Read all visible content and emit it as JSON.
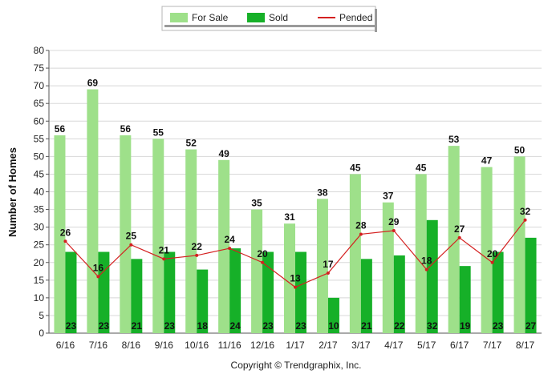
{
  "chart_data": {
    "type": "bar",
    "categories": [
      "6/16",
      "7/16",
      "8/16",
      "9/16",
      "10/16",
      "11/16",
      "12/16",
      "1/17",
      "2/17",
      "3/17",
      "4/17",
      "5/17",
      "6/17",
      "7/17",
      "8/17"
    ],
    "series": [
      {
        "name": "For Sale",
        "type": "bar",
        "color": "#9ee08a",
        "values": [
          56,
          69,
          56,
          55,
          52,
          49,
          35,
          31,
          38,
          45,
          37,
          45,
          53,
          47,
          50
        ]
      },
      {
        "name": "Sold",
        "type": "bar",
        "color": "#16b028",
        "values": [
          23,
          23,
          21,
          23,
          18,
          24,
          23,
          23,
          10,
          21,
          22,
          32,
          19,
          23,
          27
        ]
      },
      {
        "name": "Pended",
        "type": "line",
        "color": "#d42020",
        "values": [
          26,
          16,
          25,
          21,
          22,
          24,
          20,
          13,
          17,
          28,
          29,
          18,
          27,
          20,
          32
        ]
      }
    ],
    "ylabel": "Number of Homes",
    "xlabel": "",
    "ylim": [
      0,
      80
    ],
    "yticks": [
      0,
      5,
      10,
      15,
      20,
      25,
      30,
      35,
      40,
      45,
      50,
      55,
      60,
      65,
      70,
      75,
      80
    ],
    "grid": true,
    "legend_position": "top-center"
  },
  "footer": {
    "copyright": "Copyright © Trendgraphix, Inc."
  }
}
